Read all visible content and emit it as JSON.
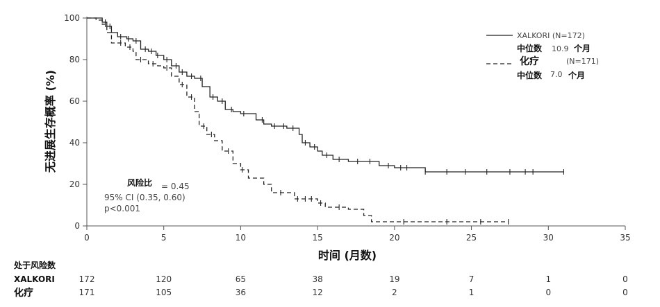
{
  "chart_data": {
    "type": "line",
    "step": true,
    "ylabel": "无进展生存概率 (%)",
    "xlabel": "时间 (月数)",
    "xlim": [
      0,
      35
    ],
    "ylim": [
      0,
      100
    ],
    "x_ticks": [
      "0",
      "5",
      "10",
      "15",
      "20",
      "25",
      "30",
      "35"
    ],
    "y_ticks": [
      "0",
      "20",
      "40",
      "60",
      "80",
      "100"
    ],
    "grid": false,
    "legend_position": "top-right",
    "series": [
      {
        "name": "XALKORI (N=172)",
        "median_label": "中位数",
        "median_value": "10.9",
        "median_unit": "个月",
        "line_style": "solid",
        "color": "#222222",
        "points": [
          [
            0,
            100
          ],
          [
            0.5,
            100
          ],
          [
            1,
            98
          ],
          [
            1.3,
            96
          ],
          [
            1.6,
            93
          ],
          [
            2,
            91
          ],
          [
            2.6,
            90
          ],
          [
            3,
            89
          ],
          [
            3.5,
            85
          ],
          [
            4,
            84
          ],
          [
            4.5,
            82
          ],
          [
            5,
            80
          ],
          [
            5.5,
            77
          ],
          [
            6,
            74
          ],
          [
            6.5,
            72
          ],
          [
            7,
            71
          ],
          [
            7.5,
            67
          ],
          [
            8,
            62
          ],
          [
            8.5,
            60
          ],
          [
            9,
            56
          ],
          [
            9.5,
            55
          ],
          [
            10,
            54
          ],
          [
            11,
            51
          ],
          [
            11.5,
            49
          ],
          [
            12,
            48
          ],
          [
            13,
            47
          ],
          [
            13.8,
            44
          ],
          [
            14,
            40
          ],
          [
            14.5,
            38
          ],
          [
            15,
            36
          ],
          [
            15.3,
            34
          ],
          [
            16,
            32
          ],
          [
            17,
            31
          ],
          [
            19,
            29
          ],
          [
            20,
            28
          ],
          [
            22,
            26
          ],
          [
            31,
            26
          ]
        ],
        "censor_x": [
          1.2,
          1.5,
          2.2,
          2.7,
          3.2,
          3.8,
          4.2,
          4.6,
          5.2,
          5.8,
          6.2,
          6.8,
          7.4,
          8.2,
          8.8,
          9.4,
          10.2,
          11.4,
          12.2,
          12.8,
          13.4,
          14.2,
          14.8,
          15.6,
          16.4,
          17.6,
          18.4,
          19.6,
          20.4,
          20.8,
          22,
          23.4,
          24.6,
          26,
          27.5,
          28.5,
          29,
          31
        ]
      },
      {
        "name": "化疗",
        "n_label": "(N=171)",
        "median_label": "中位数",
        "median_value": "7.0",
        "median_unit": "个月",
        "line_style": "dashed",
        "color": "#222222",
        "points": [
          [
            0,
            100
          ],
          [
            0.6,
            99
          ],
          [
            1,
            97
          ],
          [
            1.3,
            93
          ],
          [
            1.6,
            88
          ],
          [
            2.5,
            86
          ],
          [
            3,
            84
          ],
          [
            3.2,
            80
          ],
          [
            4,
            78
          ],
          [
            4.6,
            77
          ],
          [
            5,
            76
          ],
          [
            5.5,
            72
          ],
          [
            6,
            68
          ],
          [
            6.5,
            62
          ],
          [
            7,
            55
          ],
          [
            7.3,
            48
          ],
          [
            7.8,
            44
          ],
          [
            8.3,
            41
          ],
          [
            8.8,
            36
          ],
          [
            9.5,
            30
          ],
          [
            10,
            27
          ],
          [
            10.5,
            23
          ],
          [
            11.5,
            20
          ],
          [
            12,
            16
          ],
          [
            13.5,
            13
          ],
          [
            15,
            11
          ],
          [
            15.5,
            9
          ],
          [
            17,
            8
          ],
          [
            18,
            5
          ],
          [
            18.5,
            2
          ],
          [
            27.4,
            2
          ]
        ],
        "censor_x": [
          1.2,
          2.2,
          2.8,
          3.5,
          4.3,
          5.2,
          6.2,
          6.8,
          7.6,
          8.1,
          9.2,
          10.1,
          12.6,
          13.7,
          14.2,
          14.6,
          15.2,
          16.4,
          20.6,
          23.4,
          25.6,
          27.4
        ]
      }
    ],
    "annotation": {
      "hr_label": "风险比",
      "hr_value": "= 0.45",
      "ci": "95% CI (0.35, 0.60)",
      "p": "p<0.001"
    },
    "risk_table": {
      "title": "处于风险数",
      "rows": [
        {
          "label": "XALKORI",
          "counts": [
            "172",
            "120",
            "65",
            "38",
            "19",
            "7",
            "1",
            "0"
          ]
        },
        {
          "label": "化疗",
          "counts": [
            "171",
            "105",
            "36",
            "12",
            "2",
            "1",
            "0",
            "0"
          ]
        }
      ]
    }
  }
}
